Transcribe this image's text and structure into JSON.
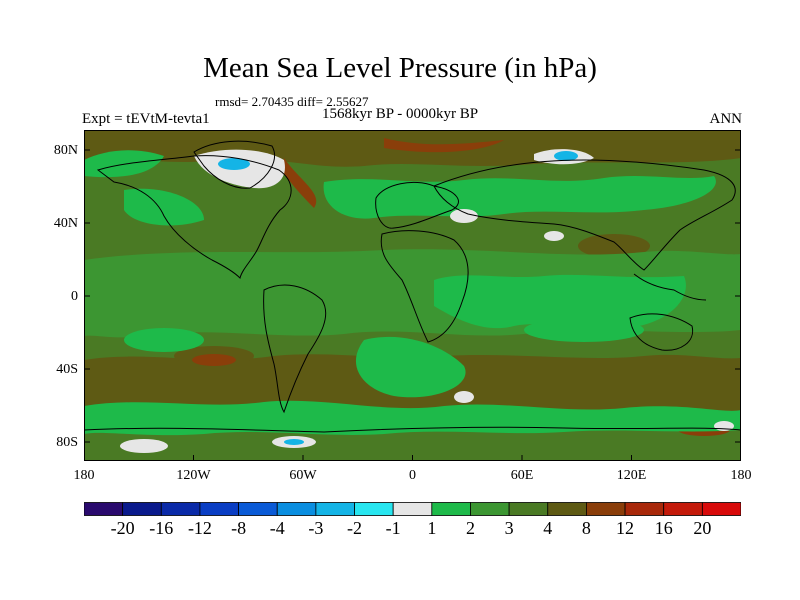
{
  "title": "Mean Sea Level Pressure (in hPa)",
  "stats_text": "rmsd= 2.70435 diff= 2.55627",
  "period": "1568kyr BP - 0000kyr BP",
  "experiment": "Expt = tEVtM-tevta1",
  "season": "ANN",
  "lat_ticks": [
    {
      "label": "80N",
      "lat": 80
    },
    {
      "label": "40N",
      "lat": 40
    },
    {
      "label": "0",
      "lat": 0
    },
    {
      "label": "40S",
      "lat": -40
    },
    {
      "label": "80S",
      "lat": -80
    }
  ],
  "lon_ticks": [
    {
      "label": "180",
      "lon": -180
    },
    {
      "label": "120W",
      "lon": -120
    },
    {
      "label": "60W",
      "lon": -60
    },
    {
      "label": "0",
      "lon": 0
    },
    {
      "label": "60E",
      "lon": 60
    },
    {
      "label": "120E",
      "lon": 120
    },
    {
      "label": "180",
      "lon": 180
    }
  ],
  "colorbar": {
    "labels": [
      "-20",
      "-16",
      "-12",
      "-8",
      "-4",
      "-3",
      "-2",
      "-1",
      "1",
      "2",
      "3",
      "4",
      "8",
      "12",
      "16",
      "20"
    ],
    "colors": [
      "#2a0a6e",
      "#0a1a8c",
      "#0a2aa8",
      "#0a3ec4",
      "#0a5ad6",
      "#0a8ee0",
      "#14b4e6",
      "#28e6f0",
      "#e6e6e6",
      "#1eba4a",
      "#3c9632",
      "#4a7a24",
      "#5e5a14",
      "#8a3e0a",
      "#a8280a",
      "#c41a0a",
      "#d80a0a"
    ]
  },
  "colors": {
    "background": "#4a7a24",
    "weak_positive": "#3c9632",
    "low_positive": "#1eba4a",
    "near_zero": "#e6e6e6",
    "negative": "#14b4e6",
    "positive": "#5e5a14",
    "strong_positive": "#8a3e0a",
    "coastline": "#000000"
  }
}
